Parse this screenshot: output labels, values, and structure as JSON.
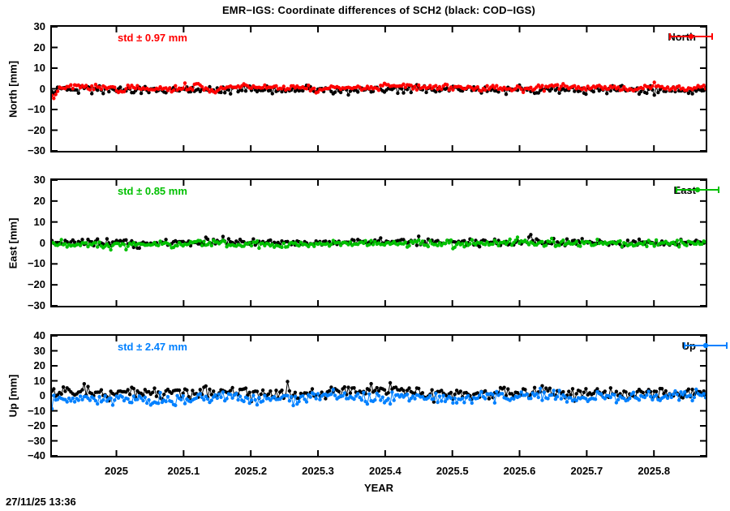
{
  "title": "EMR−IGS: Coordinate differences of SCH2 (black: COD−IGS)",
  "xlabel": "YEAR",
  "timestamp": "27/11/25 13:36",
  "colors": {
    "north": "#ff0000",
    "east": "#00c000",
    "up": "#0080ff",
    "reference": "#000000"
  },
  "x_axis": {
    "range": [
      2024.904,
      2025.877
    ],
    "ticks": [
      {
        "v": 2025.0,
        "label": "2025"
      },
      {
        "v": 2025.1,
        "label": "2025.1"
      },
      {
        "v": 2025.2,
        "label": "2025.2"
      },
      {
        "v": 2025.3,
        "label": "2025.3"
      },
      {
        "v": 2025.4,
        "label": "2025.4"
      },
      {
        "v": 2025.5,
        "label": "2025.5"
      },
      {
        "v": 2025.6,
        "label": "2025.6"
      },
      {
        "v": 2025.7,
        "label": "2025.7"
      },
      {
        "v": 2025.8,
        "label": "2025.8"
      }
    ]
  },
  "chart_data": [
    {
      "type": "scatter",
      "panel": "north",
      "ylabel": "North [mm]",
      "ylim": [
        -30,
        30
      ],
      "yticks": [
        30,
        20,
        10,
        0,
        -10,
        -20,
        -30
      ],
      "std_label": "std ± 0.97 mm",
      "std_mm": 0.97,
      "legend_label": "North",
      "accent_color": "#ff0000",
      "series": [
        {
          "name": "COD−IGS",
          "color": "#000000",
          "n": 345,
          "seed": 101,
          "mean": [
            -0.35,
            -0.35
          ],
          "std": 1.0,
          "wander": 0.4,
          "features": [
            {
              "x": 2024.906,
              "dy": -1.5,
              "w": 0.004
            }
          ]
        },
        {
          "name": "EMR−IGS",
          "color": "#ff0000",
          "n": 345,
          "seed": 202,
          "mean": [
            0.55,
            0.55
          ],
          "std": 0.75,
          "wander": 0.45,
          "features": [
            {
              "x": 2024.906,
              "dy": -4.8,
              "w": 0.004
            },
            {
              "x": 2025.005,
              "dy": -2.6,
              "w": 0.003
            },
            {
              "x": 2025.145,
              "dy": -3.0,
              "w": 0.004
            }
          ]
        }
      ]
    },
    {
      "type": "scatter",
      "panel": "east",
      "ylabel": "East [mm]",
      "ylim": [
        -30,
        30
      ],
      "yticks": [
        30,
        20,
        10,
        0,
        -10,
        -20,
        -30
      ],
      "std_label": "std ± 0.85 mm",
      "std_mm": 0.85,
      "legend_label": "East",
      "accent_color": "#00c000",
      "series": [
        {
          "name": "COD−IGS",
          "color": "#000000",
          "n": 345,
          "seed": 303,
          "mean": [
            0.25,
            0.25
          ],
          "std": 0.8,
          "wander": 0.4,
          "features": [
            {
              "x": 2025.616,
              "dy": 3.5,
              "w": 0.002
            }
          ]
        },
        {
          "name": "EMR−IGS",
          "color": "#00c000",
          "n": 345,
          "seed": 404,
          "mean": [
            -0.7,
            -0.1
          ],
          "std": 0.8,
          "wander": 0.4,
          "features": [
            {
              "x": 2024.99,
              "dy": -1.5,
              "w": 0.004
            }
          ]
        }
      ]
    },
    {
      "type": "scatter",
      "panel": "up",
      "ylabel": "Up [mm]",
      "ylim": [
        -40,
        40
      ],
      "yticks": [
        40,
        30,
        20,
        10,
        0,
        -10,
        -20,
        -30,
        -40
      ],
      "std_label": "std ± 2.47 mm",
      "std_mm": 2.47,
      "legend_label": "Up",
      "accent_color": "#0080ff",
      "series": [
        {
          "name": "COD−IGS",
          "color": "#000000",
          "n": 345,
          "seed": 505,
          "mean": [
            2.6,
            1.4
          ],
          "std": 2.0,
          "wander": 0.9,
          "features": [
            {
              "x": 2025.4,
              "dy": 1.8,
              "w": 0.03
            }
          ]
        },
        {
          "name": "EMR−IGS",
          "color": "#0080ff",
          "n": 345,
          "seed": 606,
          "mean": [
            -1.9,
            -0.4
          ],
          "std": 1.9,
          "wander": 0.9,
          "features": [
            {
              "x": 2025.08,
              "dy": -2.2,
              "w": 0.025
            },
            {
              "x": 2024.906,
              "dy": -1.5,
              "w": 0.01
            }
          ]
        }
      ]
    }
  ]
}
